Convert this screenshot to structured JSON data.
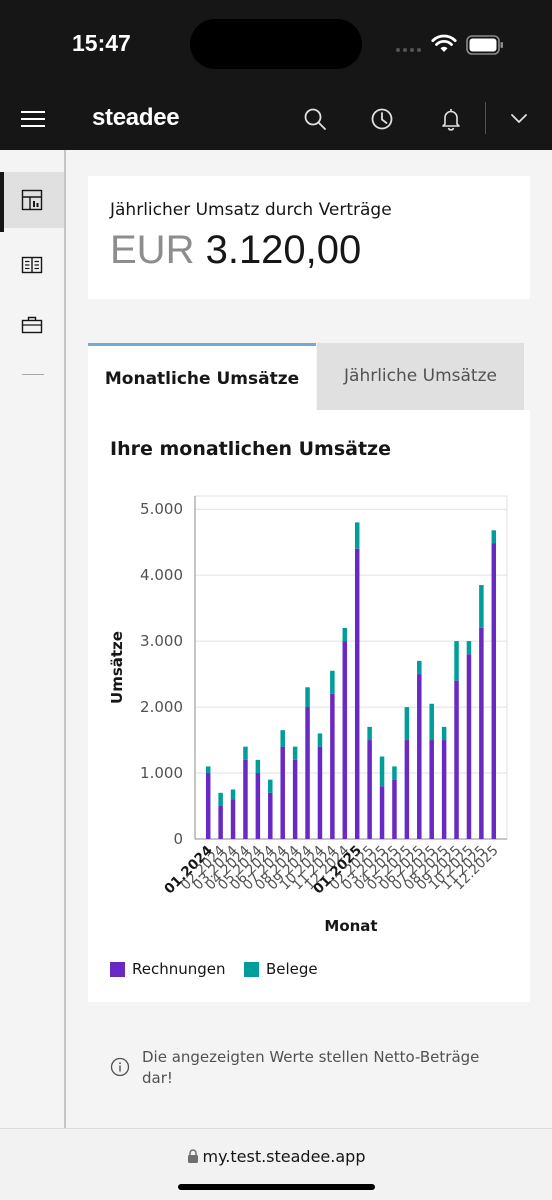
{
  "status_bar": {
    "time": "15:47"
  },
  "header": {
    "logo": "steadee",
    "icons": [
      "menu-icon",
      "search-icon",
      "clock-icon",
      "bell-icon",
      "chevron-down-icon"
    ]
  },
  "sidebar": {
    "items": [
      {
        "icon": "dashboard-icon",
        "active": true
      },
      {
        "icon": "book-icon",
        "active": false
      },
      {
        "icon": "briefcase-icon",
        "active": false
      }
    ]
  },
  "revenue_card": {
    "label": "Jährlicher Umsatz durch Verträge",
    "currency": "EUR",
    "amount": "3.120,00"
  },
  "tabs": [
    {
      "label": "Monatliche Umsätze",
      "active": true
    },
    {
      "label": "Jährliche Umsätze",
      "active": false
    }
  ],
  "chart_section": {
    "title": "Ihre monatlichen Umsätze"
  },
  "chart_data": {
    "type": "bar",
    "stacked": true,
    "xlabel": "Monat",
    "ylabel": "Umsätze",
    "ylim": [
      0,
      5200
    ],
    "yticks": [
      0,
      1000,
      2000,
      3000,
      4000,
      5000
    ],
    "ytick_labels": [
      "0",
      "1.000",
      "2.000",
      "3.000",
      "4.000",
      "5.000"
    ],
    "categories": [
      "01.2024",
      "02.2024",
      "03.2024",
      "04.2024",
      "05.2024",
      "06.2024",
      "07.2024",
      "08.2024",
      "09.2024",
      "10.2024",
      "11.2024",
      "12.2024",
      "01.2025",
      "02.2025",
      "03.2025",
      "04.2025",
      "05.2025",
      "06.2025",
      "07.2025",
      "08.2025",
      "09.2025",
      "10.2025",
      "11.2025",
      "12.2025"
    ],
    "bold_categories": [
      "01.2024",
      "01.2025"
    ],
    "series": [
      {
        "name": "Rechnungen",
        "color": "#6929c4",
        "values": [
          1000,
          500,
          600,
          1200,
          1000,
          700,
          1400,
          1200,
          2000,
          1400,
          2200,
          3000,
          4400,
          1500,
          800,
          900,
          1500,
          2500,
          1500,
          1500,
          2400,
          2800,
          3200,
          4480
        ]
      },
      {
        "name": "Belege",
        "color": "#009d9a",
        "values": [
          100,
          200,
          150,
          200,
          200,
          200,
          250,
          200,
          300,
          200,
          350,
          200,
          400,
          200,
          450,
          200,
          500,
          200,
          550,
          200,
          600,
          200,
          650,
          200
        ]
      }
    ],
    "grid": true,
    "legend_position": "bottom-left"
  },
  "info": {
    "icon": "info-icon",
    "text": "Die angezeigten Werte stellen Netto-Beträge dar!"
  },
  "url_bar": {
    "url": "my.test.steadee.app",
    "icon": "lock-icon"
  }
}
